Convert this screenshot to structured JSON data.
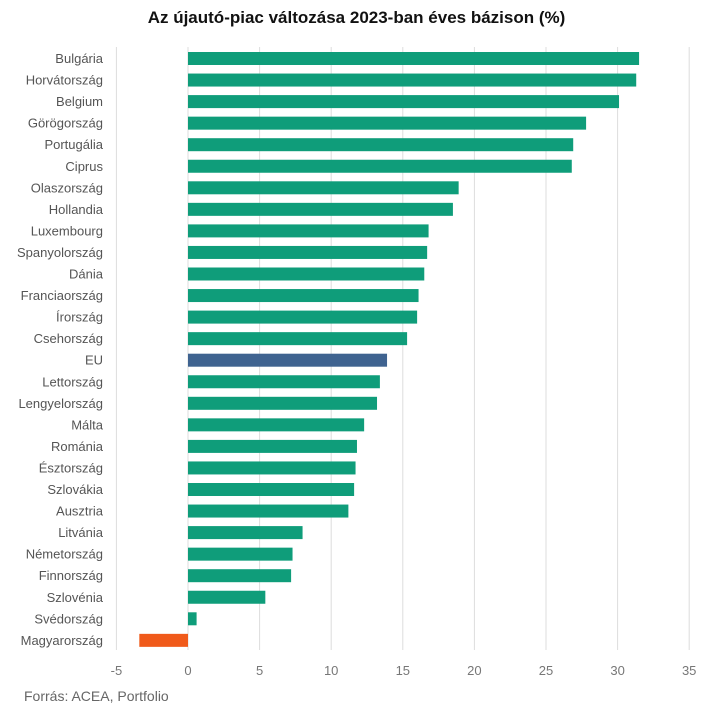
{
  "chart_data": {
    "type": "bar",
    "orientation": "horizontal",
    "title": "Az újautó-piac változása 2023-ban éves bázison (%)",
    "source": "Forrás: ACEA, Portfolio",
    "xlim": [
      -5,
      35
    ],
    "xticks": [
      -5,
      0,
      5,
      10,
      15,
      20,
      25,
      30,
      35
    ],
    "grid": true,
    "colors": {
      "default": "#0f9d7a",
      "highlight": "#3f6390",
      "negative": "#f05a1a"
    },
    "categories": [
      "Bulgária",
      "Horvátország",
      "Belgium",
      "Görögország",
      "Portugália",
      "Ciprus",
      "Olaszország",
      "Hollandia",
      "Luxembourg",
      "Spanyolország",
      "Dánia",
      "Franciaország",
      "Írország",
      "Csehország",
      "EU",
      "Lettország",
      "Lengyelország",
      "Málta",
      "Románia",
      "Észtország",
      "Szlovákia",
      "Ausztria",
      "Litvánia",
      "Németország",
      "Finnország",
      "Szlovénia",
      "Svédország",
      "Magyarország"
    ],
    "values": [
      31.5,
      31.3,
      30.1,
      27.8,
      26.9,
      26.8,
      18.9,
      18.5,
      16.8,
      16.7,
      16.5,
      16.1,
      16.0,
      15.3,
      13.9,
      13.4,
      13.2,
      12.3,
      11.8,
      11.7,
      11.6,
      11.2,
      8.0,
      7.3,
      7.2,
      5.4,
      0.6,
      -3.4
    ],
    "highlight": "EU"
  }
}
